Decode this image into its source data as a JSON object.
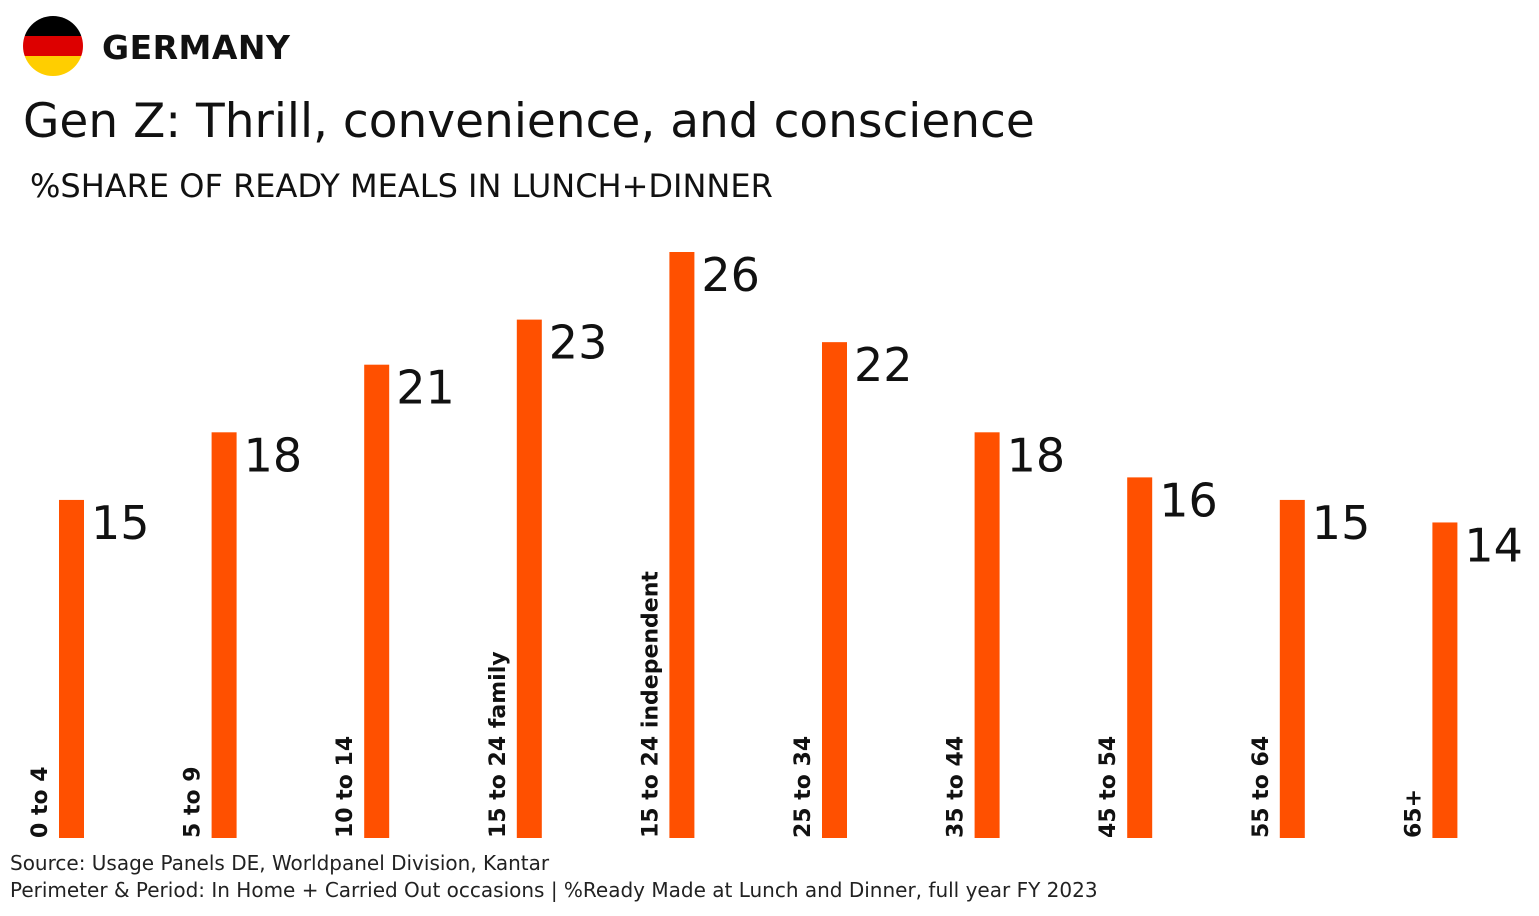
{
  "header": {
    "country": "GERMANY",
    "flag_colors": [
      "#000000",
      "#DD0000",
      "#FFCE00"
    ],
    "title": "Gen Z: Thrill, convenience, and conscience",
    "subtitle": "%SHARE OF READY MEALS IN LUNCH+DINNER"
  },
  "chart_data": {
    "type": "bar",
    "title": "Gen Z: Thrill, convenience, and conscience",
    "subtitle": "%SHARE OF READY MEALS IN LUNCH+DINNER",
    "categories": [
      "0 to 4",
      "5 to 9",
      "10 to 14",
      "15 to 24 family",
      "15 to 24 independent",
      "25 to 34",
      "35 to 44",
      "45 to 54",
      "55 to 64",
      "65+"
    ],
    "values": [
      15,
      18,
      21,
      23,
      26,
      22,
      18,
      16,
      15,
      14
    ],
    "ylim": [
      0,
      26
    ],
    "bar_color": "#FF5000",
    "grid": false,
    "legend": "none"
  },
  "footer": {
    "source": "Source: Usage Panels DE, Worldpanel Division, Kantar",
    "perimeter": "Perimeter & Period: In Home + Carried Out occasions | %Ready Made at Lunch and Dinner, full year FY 2023"
  }
}
